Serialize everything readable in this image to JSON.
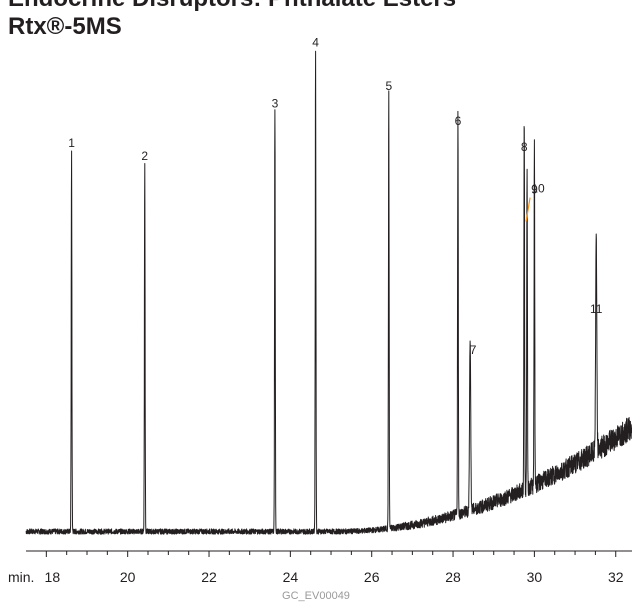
{
  "chart_data": {
    "type": "line",
    "title_lines": [
      "Endocrine Disruptors: Phthalate Esters",
      "Rtx®-5MS"
    ],
    "x_unit_label": "min.",
    "xlim": [
      17.5,
      32.4
    ],
    "ylim": [
      0,
      100
    ],
    "x_ticks": [
      18,
      20,
      22,
      24,
      26,
      28,
      30,
      32
    ],
    "peaks": [
      {
        "label": "1",
        "x": 18.62,
        "y": 87
      },
      {
        "label": "2",
        "x": 20.42,
        "y": 84
      },
      {
        "label": "3",
        "x": 23.62,
        "y": 96
      },
      {
        "label": "4",
        "x": 24.62,
        "y": 110
      },
      {
        "label": "5",
        "x": 26.42,
        "y": 100
      },
      {
        "label": "6",
        "x": 28.12,
        "y": 92
      },
      {
        "label": "7",
        "x": 28.42,
        "y": 40
      },
      {
        "label": "8",
        "x": 29.75,
        "y": 86
      },
      {
        "label": "9",
        "x": 29.82,
        "y": 74
      },
      {
        "label": "10",
        "x": 30.0,
        "y": 77
      },
      {
        "label": "11",
        "x": 31.52,
        "y": 49
      }
    ],
    "footer_code": "GC_EV00049",
    "colors": {
      "trace": "#231f20",
      "leader": "#f7941d"
    }
  }
}
